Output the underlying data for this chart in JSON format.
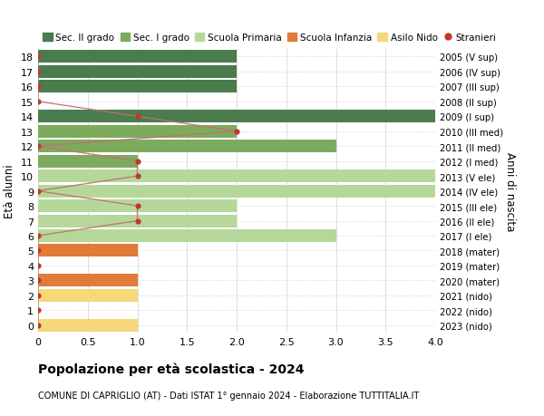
{
  "ages": [
    18,
    17,
    16,
    15,
    14,
    13,
    12,
    11,
    10,
    9,
    8,
    7,
    6,
    5,
    4,
    3,
    2,
    1,
    0
  ],
  "years_labels": [
    "2005 (V sup)",
    "2006 (IV sup)",
    "2007 (III sup)",
    "2008 (II sup)",
    "2009 (I sup)",
    "2010 (III med)",
    "2011 (II med)",
    "2012 (I med)",
    "2013 (V ele)",
    "2014 (IV ele)",
    "2015 (III ele)",
    "2016 (II ele)",
    "2017 (I ele)",
    "2018 (mater)",
    "2019 (mater)",
    "2020 (mater)",
    "2021 (nido)",
    "2022 (nido)",
    "2023 (nido)"
  ],
  "bar_values": [
    2,
    2,
    2,
    0,
    4,
    2,
    3,
    1,
    4,
    4,
    2,
    2,
    3,
    1,
    0,
    1,
    1,
    0,
    1
  ],
  "bar_colors": [
    "#4a7c4e",
    "#4a7c4e",
    "#4a7c4e",
    "#4a7c4e",
    "#4a7c4e",
    "#7dab5e",
    "#7dab5e",
    "#7dab5e",
    "#b5d89a",
    "#b5d89a",
    "#b5d89a",
    "#b5d89a",
    "#b5d89a",
    "#e07b39",
    "#e07b39",
    "#e07b39",
    "#f5d87a",
    "#f5d87a",
    "#f5d87a"
  ],
  "stranieri_values": [
    0,
    0,
    0,
    0,
    1,
    2,
    0,
    1,
    1,
    0,
    1,
    1,
    0,
    0,
    0,
    0,
    0,
    0,
    0
  ],
  "legend_labels": [
    "Sec. II grado",
    "Sec. I grado",
    "Scuola Primaria",
    "Scuola Infanzia",
    "Asilo Nido",
    "Stranieri"
  ],
  "legend_colors": [
    "#4a7c4e",
    "#7dab5e",
    "#b5d89a",
    "#e07b39",
    "#f5d87a",
    "#c0392b"
  ],
  "title": "Popolazione per età scolastica - 2024",
  "subtitle": "COMUNE DI CAPRIGLIO (AT) - Dati ISTAT 1° gennaio 2024 - Elaborazione TUTTITALIA.IT",
  "ylabel": "Età alunni",
  "right_label": "Anni di nascita",
  "xlim": [
    0,
    4.0
  ],
  "xticks": [
    0,
    0.5,
    1.0,
    1.5,
    2.0,
    2.5,
    3.0,
    3.5,
    4.0
  ],
  "xtick_labels": [
    "0",
    "0.5",
    "1.0",
    "1.5",
    "2.0",
    "2.5",
    "3.0",
    "3.5",
    "4.0"
  ],
  "bg_color": "#ffffff",
  "grid_color": "#dddddd",
  "stranieri_line_color": "#c07070",
  "stranieri_dot_color": "#c0392b"
}
